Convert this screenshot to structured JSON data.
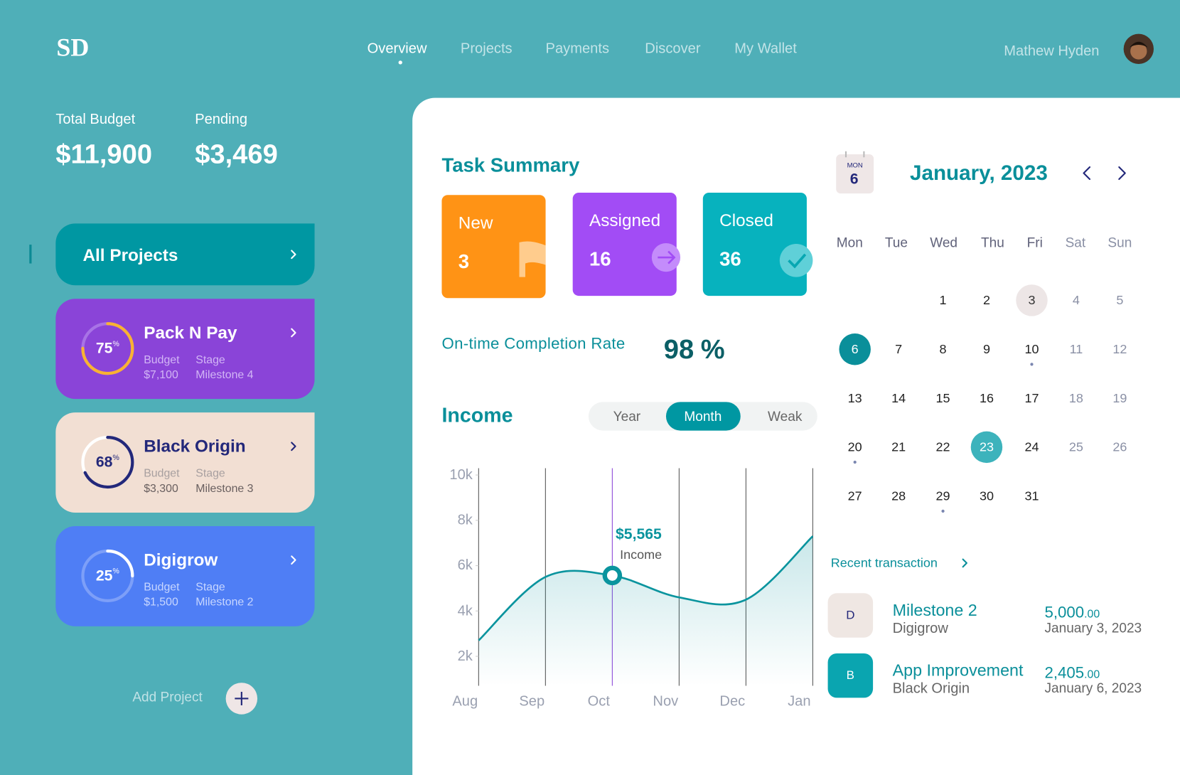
{
  "header": {
    "logo": "SD",
    "nav": [
      "Overview",
      "Projects",
      "Payments",
      "Discover",
      "My Wallet"
    ],
    "user": "Mathew Hyden"
  },
  "balances": [
    {
      "label": "Total Budget",
      "value": "$11,900"
    },
    {
      "label": "Pending",
      "value": "$3,469"
    }
  ],
  "projects": {
    "all": "All Projects",
    "add": "Add Project",
    "items": [
      {
        "name": "Pack N Pay",
        "percent": 75,
        "percent_unit": "%",
        "budget_label": "Budget",
        "budget": "$7,100",
        "stage_label": "Stage",
        "stage": "Milestone 4"
      },
      {
        "name": "Black Origin",
        "percent": 68,
        "percent_unit": "%",
        "budget_label": "Budget",
        "budget": "$3,300",
        "stage_label": "Stage",
        "stage": "Milestone 3"
      },
      {
        "name": "Digigrow",
        "percent": 25,
        "percent_unit": "%",
        "budget_label": "Budget",
        "budget": "$1,500",
        "stage_label": "Stage",
        "stage": "Milestone 2"
      }
    ]
  },
  "task_summary": {
    "title": "Task Summary",
    "cards": [
      {
        "label": "New",
        "value": 3
      },
      {
        "label": "Assigned",
        "value": 16
      },
      {
        "label": "Closed",
        "value": 36
      }
    ],
    "completion_label": "On-time Completion Rate",
    "completion_value": 98,
    "completion_unit": "%"
  },
  "income": {
    "title": "Income",
    "tabs": [
      "Year",
      "Month",
      "Weak"
    ],
    "chart": {
      "type": "line",
      "categories": [
        "Aug",
        "Sep",
        "Oct",
        "Nov",
        "Dec",
        "Jan"
      ],
      "series": [
        {
          "name": "Income",
          "color": "#0a949e",
          "values": [
            2700,
            5500,
            5565,
            4600,
            4500,
            7300
          ],
          "value_labels": [
            null,
            null,
            "$5,565",
            null,
            null,
            null
          ]
        }
      ],
      "ylim": [
        700,
        10300
      ],
      "yticks": [
        {
          "value": 2000,
          "label": "2k"
        },
        {
          "value": 4000,
          "label": "4k"
        },
        {
          "value": 6000,
          "label": "6k"
        },
        {
          "value": 8000,
          "label": "8k"
        },
        {
          "value": 10000,
          "label": "10k"
        }
      ]
    }
  },
  "calendar": {
    "icon_label": "MON",
    "icon_day": 6,
    "month": "January, 2023",
    "weekdays": [
      "Mon",
      "Tue",
      "Wed",
      "Thu",
      "Fri",
      "Sat",
      "Sun"
    ],
    "days": [
      1,
      2,
      3,
      4,
      5,
      6,
      7,
      8,
      9,
      10,
      11,
      12,
      13,
      14,
      15,
      16,
      17,
      18,
      19,
      20,
      21,
      22,
      23,
      24,
      25,
      26,
      27,
      28,
      29,
      30,
      31
    ]
  },
  "transactions": {
    "title": "Recent transaction",
    "items": [
      {
        "initial": "D",
        "title": "Milestone 2",
        "subtitle": "Digigrow",
        "amount": "5,000",
        "cents": ".00",
        "date": "January 3, 2023"
      },
      {
        "initial": "B",
        "title": "App Improvement",
        "subtitle": "Black Origin",
        "amount": "2,405",
        "cents": ".00",
        "date": "January 6, 2023"
      }
    ]
  }
}
